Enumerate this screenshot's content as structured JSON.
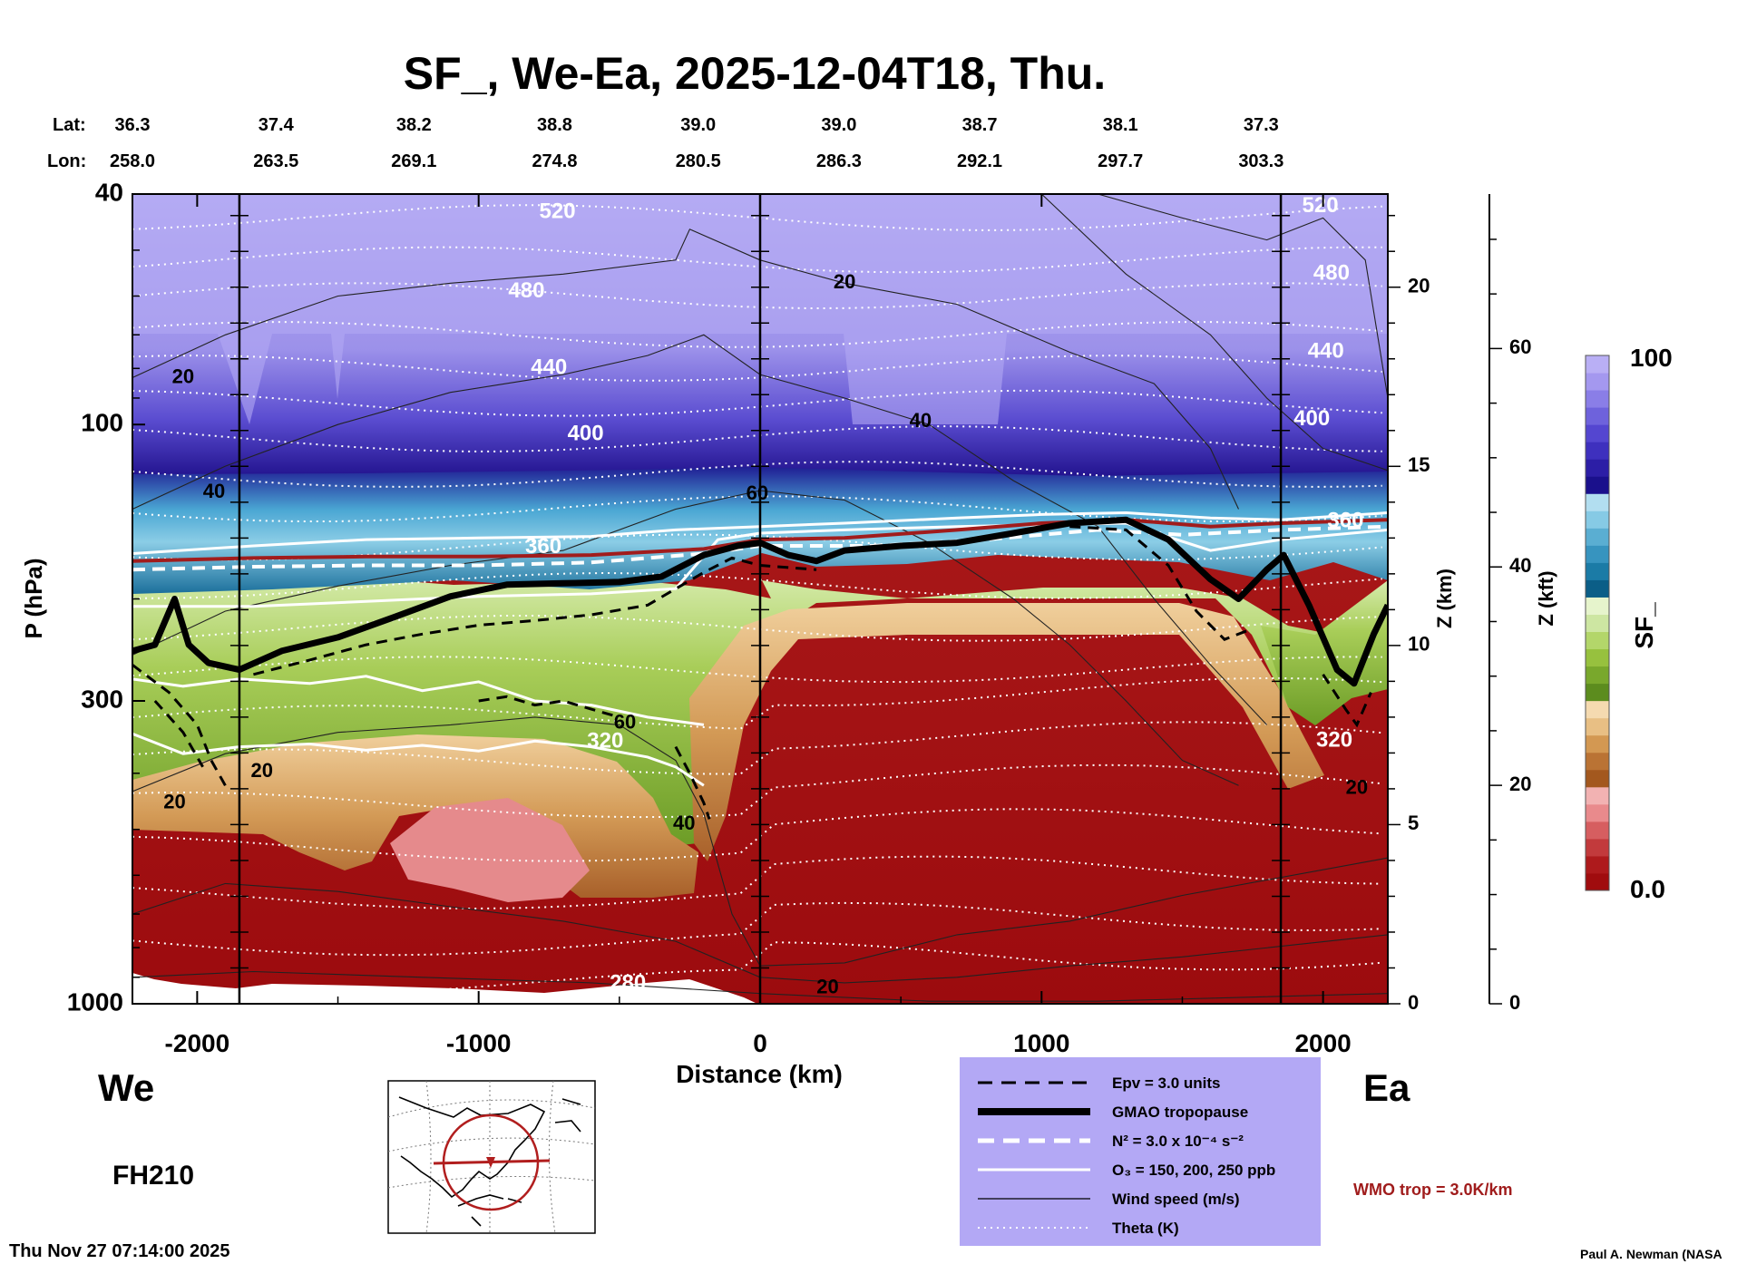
{
  "chart_data": {
    "type": "heatmap",
    "title": "SF_, We-Ea, 2025-12-04T18, Thu.",
    "xlabel": "Distance (km)",
    "ylabel": "P (hPa)",
    "y2label": "Z (km)",
    "y3label": "Z (kft)",
    "xlim": [
      -2230,
      2230
    ],
    "ylim": [
      1000,
      40
    ],
    "y_scale": "log",
    "x_ticks": [
      -2000,
      -1000,
      0,
      1000,
      2000
    ],
    "x_tick_labels": [
      "-2000",
      "-1000",
      "0",
      "1000",
      "2000"
    ],
    "y_ticks": [
      40,
      100,
      300,
      1000
    ],
    "y_tick_labels": [
      "40",
      "100",
      "300",
      "1000"
    ],
    "z_km_ticks": [
      0,
      5,
      10,
      15,
      20
    ],
    "z_km_labels": [
      "0",
      "5",
      "10",
      "15",
      "20"
    ],
    "z_kft_ticks": [
      0,
      20,
      40,
      60
    ],
    "z_kft_labels": [
      "0",
      "20",
      "40",
      "60"
    ],
    "lat_label": "Lat:",
    "lon_label": "Lon:",
    "lat_lon": [
      {
        "x": -2230,
        "lat": "36.3",
        "lon": "258.0"
      },
      {
        "x": -1720,
        "lat": "37.4",
        "lon": "263.5"
      },
      {
        "x": -1230,
        "lat": "38.2",
        "lon": "269.1"
      },
      {
        "x": -730,
        "lat": "38.8",
        "lon": "274.8"
      },
      {
        "x": -220,
        "lat": "39.0",
        "lon": "280.5"
      },
      {
        "x": 280,
        "lat": "39.0",
        "lon": "286.3"
      },
      {
        "x": 780,
        "lat": "38.7",
        "lon": "292.1"
      },
      {
        "x": 1280,
        "lat": "38.1",
        "lon": "297.7"
      },
      {
        "x": 1780,
        "lat": "37.3",
        "lon": "303.3"
      }
    ],
    "vertical_lines": [
      -1850,
      0,
      1850
    ],
    "theta_labels": [
      {
        "text": "520",
        "x": -720,
        "p": 43
      },
      {
        "text": "480",
        "x": -830,
        "p": 59
      },
      {
        "text": "440",
        "x": -750,
        "p": 80
      },
      {
        "text": "400",
        "x": -620,
        "p": 104
      },
      {
        "text": "360",
        "x": -770,
        "p": 163
      },
      {
        "text": "320",
        "x": -550,
        "p": 353
      },
      {
        "text": "280",
        "x": -470,
        "p": 925
      },
      {
        "text": "520",
        "x": 1990,
        "p": 42
      },
      {
        "text": "480",
        "x": 2030,
        "p": 55
      },
      {
        "text": "440",
        "x": 2010,
        "p": 75
      },
      {
        "text": "400",
        "x": 1960,
        "p": 98
      },
      {
        "text": "360",
        "x": 2080,
        "p": 147
      },
      {
        "text": "320",
        "x": 2040,
        "p": 352
      }
    ],
    "wind_labels": [
      {
        "text": "20",
        "x": 300,
        "p": 57
      },
      {
        "text": "20",
        "x": -2050,
        "p": 83
      },
      {
        "text": "40",
        "x": -1940,
        "p": 131
      },
      {
        "text": "40",
        "x": 570,
        "p": 99
      },
      {
        "text": "60",
        "x": -10,
        "p": 132
      },
      {
        "text": "60",
        "x": -480,
        "p": 328
      },
      {
        "text": "20",
        "x": -1770,
        "p": 398
      },
      {
        "text": "20",
        "x": -2080,
        "p": 450
      },
      {
        "text": "40",
        "x": -270,
        "p": 490
      },
      {
        "text": "20",
        "x": 240,
        "p": 940
      },
      {
        "text": "20",
        "x": 2120,
        "p": 425
      }
    ],
    "gmao_tropopause": [
      [
        -2230,
        246
      ],
      [
        -2150,
        240
      ],
      [
        -2080,
        200
      ],
      [
        -2030,
        240
      ],
      [
        -1960,
        258
      ],
      [
        -1850,
        265
      ],
      [
        -1700,
        246
      ],
      [
        -1500,
        233
      ],
      [
        -1300,
        215
      ],
      [
        -1100,
        198
      ],
      [
        -900,
        189
      ],
      [
        -700,
        188
      ],
      [
        -500,
        187
      ],
      [
        -350,
        183
      ],
      [
        -200,
        168
      ],
      [
        -80,
        162
      ],
      [
        0,
        160
      ],
      [
        100,
        168
      ],
      [
        200,
        172
      ],
      [
        300,
        165
      ],
      [
        500,
        162
      ],
      [
        700,
        160
      ],
      [
        900,
        154
      ],
      [
        1100,
        148
      ],
      [
        1300,
        146
      ],
      [
        1450,
        158
      ],
      [
        1600,
        185
      ],
      [
        1700,
        200
      ],
      [
        1800,
        178
      ],
      [
        1860,
        168
      ],
      [
        1950,
        205
      ],
      [
        2050,
        265
      ],
      [
        2110,
        280
      ],
      [
        2180,
        230
      ],
      [
        2230,
        205
      ]
    ],
    "wmo_tropopause": [
      [
        -2230,
        172
      ],
      [
        -1800,
        170
      ],
      [
        -1400,
        169
      ],
      [
        -1000,
        169
      ],
      [
        -600,
        168
      ],
      [
        -200,
        164
      ],
      [
        0,
        158
      ],
      [
        300,
        157
      ],
      [
        700,
        152
      ],
      [
        1000,
        148
      ],
      [
        1300,
        146
      ],
      [
        1600,
        150
      ],
      [
        1850,
        148
      ],
      [
        2230,
        146
      ]
    ],
    "o3_contours": [
      [
        [
          -2230,
          167
        ],
        [
          -1800,
          162
        ],
        [
          -1400,
          158
        ],
        [
          -1000,
          157
        ],
        [
          -600,
          156
        ],
        [
          -300,
          152
        ],
        [
          0,
          150
        ],
        [
          300,
          148
        ],
        [
          700,
          145
        ],
        [
          1000,
          143
        ],
        [
          1300,
          142
        ],
        [
          1600,
          145
        ],
        [
          1850,
          146
        ],
        [
          2230,
          142
        ]
      ],
      [
        [
          -2230,
          206
        ],
        [
          -1800,
          206
        ],
        [
          -1400,
          202
        ],
        [
          -1000,
          198
        ],
        [
          -600,
          196
        ],
        [
          -300,
          192
        ],
        [
          -150,
          158
        ],
        [
          0,
          154
        ],
        [
          300,
          152
        ],
        [
          700,
          150
        ],
        [
          1300,
          148
        ],
        [
          1600,
          165
        ],
        [
          1850,
          158
        ],
        [
          2230,
          152
        ]
      ],
      [
        [
          -2230,
          275
        ],
        [
          -2050,
          283
        ],
        [
          -1850,
          275
        ],
        [
          -1600,
          280
        ],
        [
          -1400,
          272
        ],
        [
          -1200,
          288
        ],
        [
          -1000,
          278
        ],
        [
          -800,
          300
        ],
        [
          -600,
          305
        ],
        [
          -400,
          320
        ],
        [
          -200,
          330
        ]
      ],
      [
        [
          -2230,
          342
        ],
        [
          -2050,
          370
        ],
        [
          -1850,
          360
        ],
        [
          -1600,
          356
        ],
        [
          -1400,
          365
        ],
        [
          -1200,
          358
        ],
        [
          -1000,
          366
        ],
        [
          -800,
          352
        ],
        [
          -600,
          360
        ],
        [
          -400,
          375
        ],
        [
          -300,
          390
        ],
        [
          -200,
          420
        ]
      ]
    ],
    "legend": {
      "items": [
        {
          "label": "Epv = 3.0 units",
          "style": "dashed-black"
        },
        {
          "label": "GMAO tropopause",
          "style": "thick-black"
        },
        {
          "label": "N² = 3.0 x 10⁻⁴ s⁻²",
          "style": "dashed-white"
        },
        {
          "label": "O₃ = 150, 200, 250 ppb",
          "style": "solid-white"
        },
        {
          "label": "Wind speed (m/s)",
          "style": "thin-black"
        },
        {
          "label": "Theta (K)",
          "style": "dotted-white"
        }
      ],
      "placement": "bottom-center",
      "background": "#b3a8f5"
    },
    "colorbar": {
      "label": "SF_",
      "max_label": "100",
      "min_label": "0.0",
      "colors": [
        "#a00c0e",
        "#ae1a1c",
        "#c23a3c",
        "#d65e60",
        "#e98a8c",
        "#f2b2b2",
        "#a3581e",
        "#ba7334",
        "#d39852",
        "#e8bf84",
        "#f5dab0",
        "#5c8c1e",
        "#79a82c",
        "#97c13e",
        "#b3d66a",
        "#cde6a2",
        "#e6f4cc",
        "#0b5e87",
        "#1b7ba6",
        "#3794bf",
        "#5aaed2",
        "#86cae5",
        "#b2def0",
        "#1a108c",
        "#2c1ea6",
        "#3e30be",
        "#5446d0",
        "#6e62dc",
        "#8a7ee7",
        "#a498ef",
        "#b9aff5"
      ]
    },
    "left_side": "We",
    "right_side": "Ea",
    "forecast_hour": "FH210",
    "wmo_label": "WMO trop = 3.0K/km",
    "timestamp": "Thu Nov 27 07:14:00 2025",
    "credit": "Paul A. Newman (NASA"
  }
}
